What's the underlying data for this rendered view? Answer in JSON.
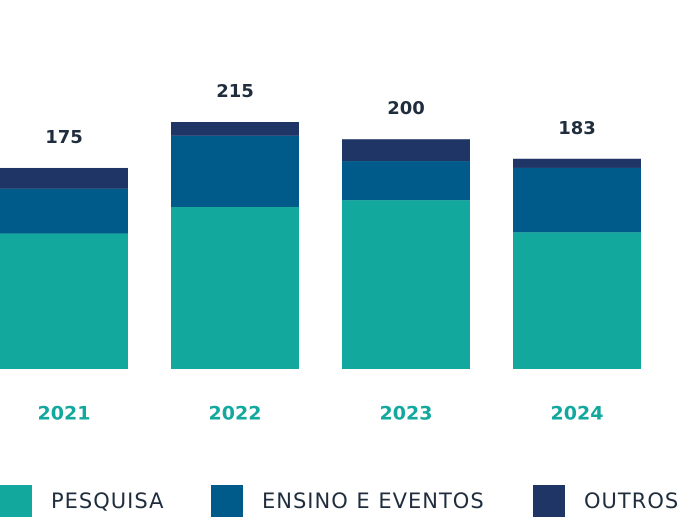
{
  "chart_data": {
    "type": "stacked_bar",
    "categories": [
      "2021",
      "2022",
      "2023",
      "2024"
    ],
    "series": [
      {
        "name": "PESQUISA",
        "color": "#12a89d",
        "values": [
          118,
          141,
          147,
          119
        ]
      },
      {
        "name": "ENSINO E EVENTOS",
        "color": "#005b8a",
        "values": [
          39,
          62,
          34,
          56
        ]
      },
      {
        "name": "OUTROS",
        "color": "#1f3566",
        "values": [
          18,
          12,
          19,
          8
        ]
      }
    ],
    "totals": [
      175,
      215,
      200,
      183
    ],
    "ylim": [
      0,
      215
    ]
  }
}
